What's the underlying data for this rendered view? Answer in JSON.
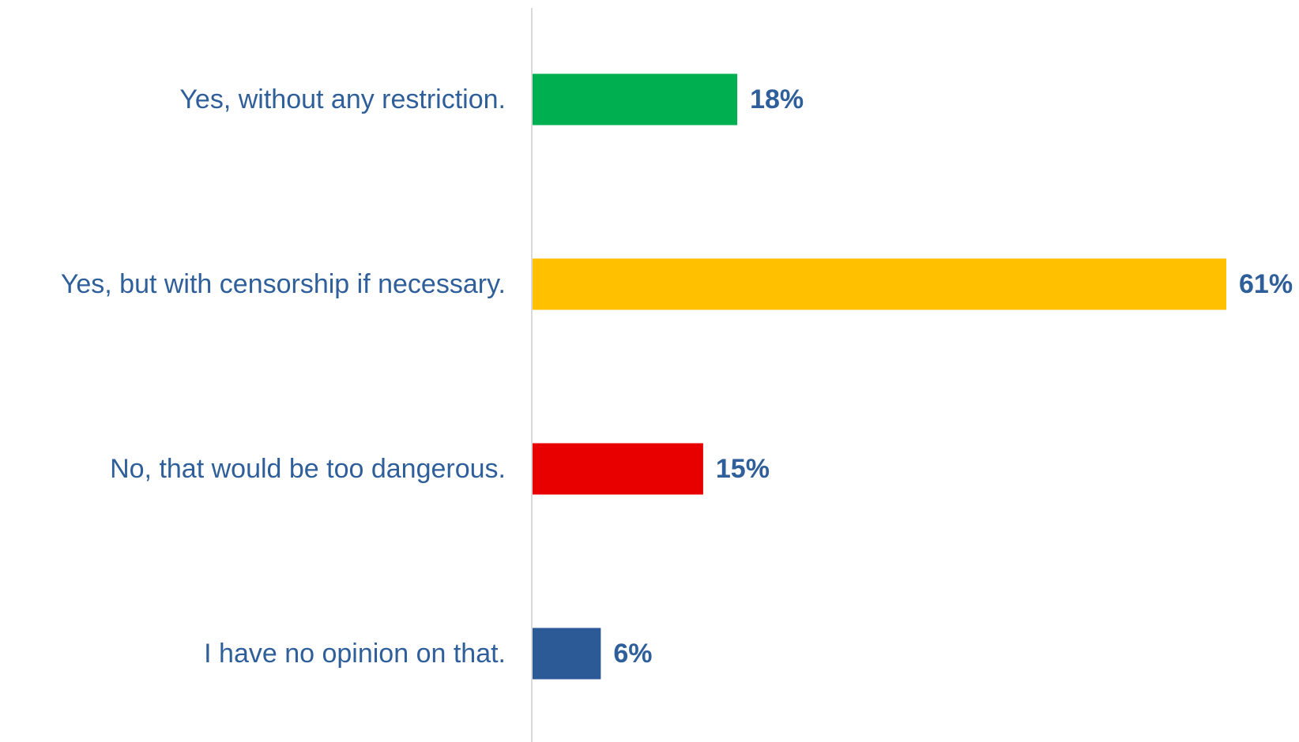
{
  "chart_data": {
    "type": "bar",
    "orientation": "horizontal",
    "categories": [
      "Yes, without any restriction.",
      "Yes, but with censorship if necessary.",
      "No, that would be too dangerous.",
      "I have no opinion on that."
    ],
    "values": [
      18,
      61,
      15,
      6
    ],
    "value_labels": [
      "18%",
      "61%",
      "15%",
      "6%"
    ],
    "colors": [
      "#00b050",
      "#ffc000",
      "#e80000",
      "#2b5a97"
    ],
    "label_color": "#2f5f9a",
    "axis_color": "#d9d9d9",
    "xlim": [
      0,
      61
    ],
    "title": "",
    "xlabel": "",
    "ylabel": "",
    "grid": false,
    "legend": "none"
  }
}
